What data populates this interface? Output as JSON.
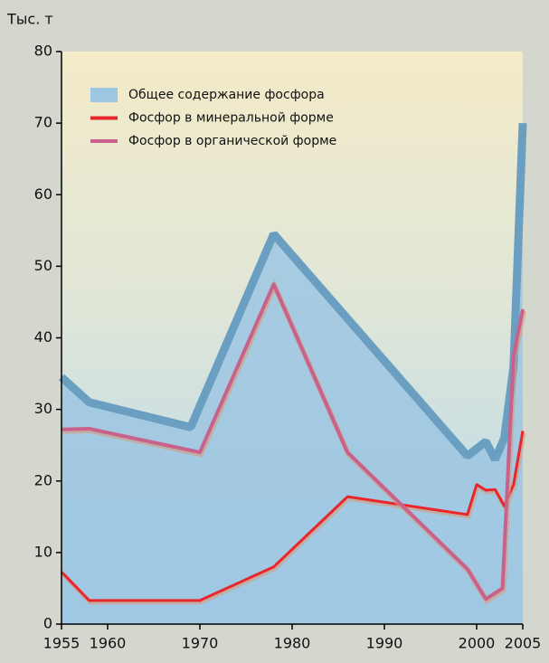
{
  "chart_data": {
    "type": "line",
    "y_label": "Тыс. т",
    "xlim": [
      1955,
      2005
    ],
    "ylim": [
      0,
      80
    ],
    "xticks": [
      1955,
      1960,
      1970,
      1980,
      1990,
      2000,
      2005
    ],
    "yticks": [
      0,
      10,
      20,
      30,
      40,
      50,
      60,
      70,
      80
    ],
    "legend": "top-left",
    "series": [
      {
        "name": "Общее содержание фосфора",
        "kind": "area",
        "color": "#9cc6e2",
        "x": [
          1955,
          1958,
          1969,
          1978,
          1999,
          2001,
          2002,
          2003,
          2004,
          2005
        ],
        "values": [
          34.5,
          31,
          27.5,
          54.5,
          23.5,
          25.5,
          23,
          26,
          36,
          70
        ]
      },
      {
        "name": "Фосфор в минеральной форме",
        "kind": "line",
        "color": "#e8262b",
        "x": [
          1955,
          1958,
          1970,
          1978,
          1986,
          1999,
          2000,
          2001,
          2002,
          2003,
          2004,
          2005
        ],
        "values": [
          7.3,
          3.3,
          3.3,
          8,
          17.8,
          15.3,
          19.5,
          18.7,
          18.8,
          16.5,
          19.5,
          27
        ]
      },
      {
        "name": "Фосфор в органической форме",
        "kind": "line",
        "color": "#c8628c",
        "x": [
          1955,
          1958,
          1970,
          1978,
          1986,
          1999,
          2001,
          2002.8,
          2004,
          2005
        ],
        "values": [
          27.2,
          27.3,
          24,
          47.5,
          24,
          7.7,
          3.5,
          5,
          37.5,
          44
        ]
      }
    ]
  }
}
